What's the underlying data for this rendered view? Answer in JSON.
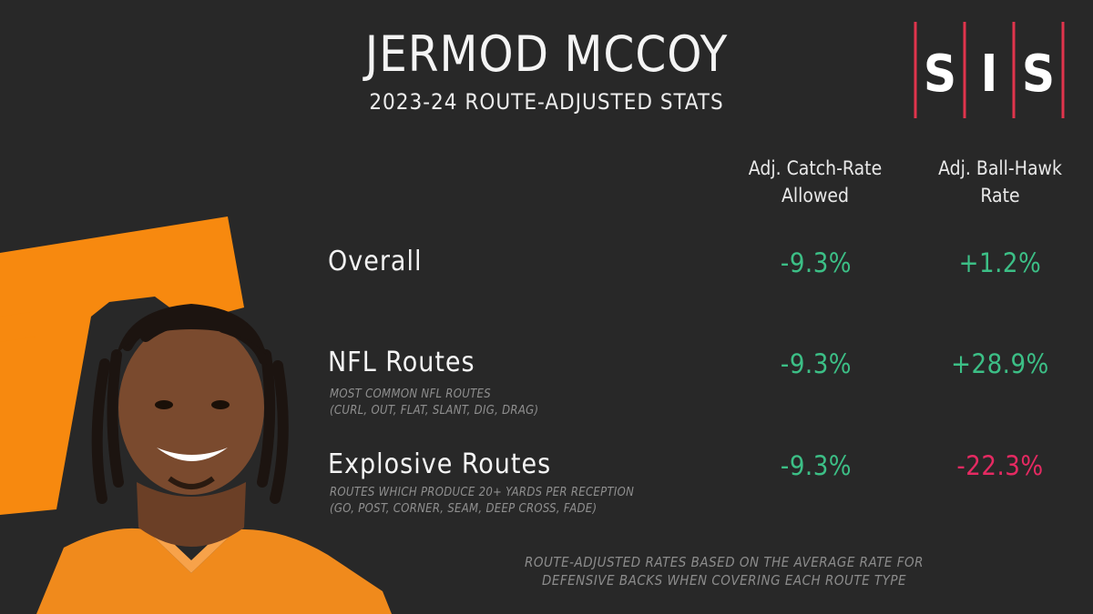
{
  "header": {
    "title": "JERMOD MCCOY",
    "subtitle": "2023-24 ROUTE-ADJUSTED STATS"
  },
  "logo": {
    "letters": [
      "S",
      "I",
      "S"
    ],
    "accent": "#e0344c"
  },
  "columns": {
    "catch_rate": [
      "Adj. Catch-Rate",
      "Allowed"
    ],
    "ball_hawk": [
      "Adj. Ball-Hawk",
      "Rate"
    ]
  },
  "rows": [
    {
      "label": "Overall",
      "notes": [],
      "catch_rate": "-9.3%",
      "ball_hawk": "+1.2%"
    },
    {
      "label": "NFL Routes",
      "notes": [
        "MOST COMMON NFL ROUTES",
        "(CURL, OUT, FLAT, SLANT, DIG, DRAG)"
      ],
      "catch_rate": "-9.3%",
      "ball_hawk": "+28.9%"
    },
    {
      "label": "Explosive Routes",
      "notes": [
        "ROUTES WHICH PRODUCE 20+ YARDS PER RECEPTION",
        "(GO, POST, CORNER, SEAM, DEEP CROSS, FADE)"
      ],
      "catch_rate": "-9.3%",
      "ball_hawk": "-22.3%"
    }
  ],
  "footnote": [
    "ROUTE-ADJUSTED RATES BASED ON THE AVERAGE RATE FOR",
    "DEFENSIVE BACKS WHEN COVERING EACH ROUTE TYPE"
  ],
  "colors": {
    "background": "#282828",
    "positive": "#3cbf86",
    "negative": "#e52a62",
    "team_orange": "#f7890f"
  }
}
